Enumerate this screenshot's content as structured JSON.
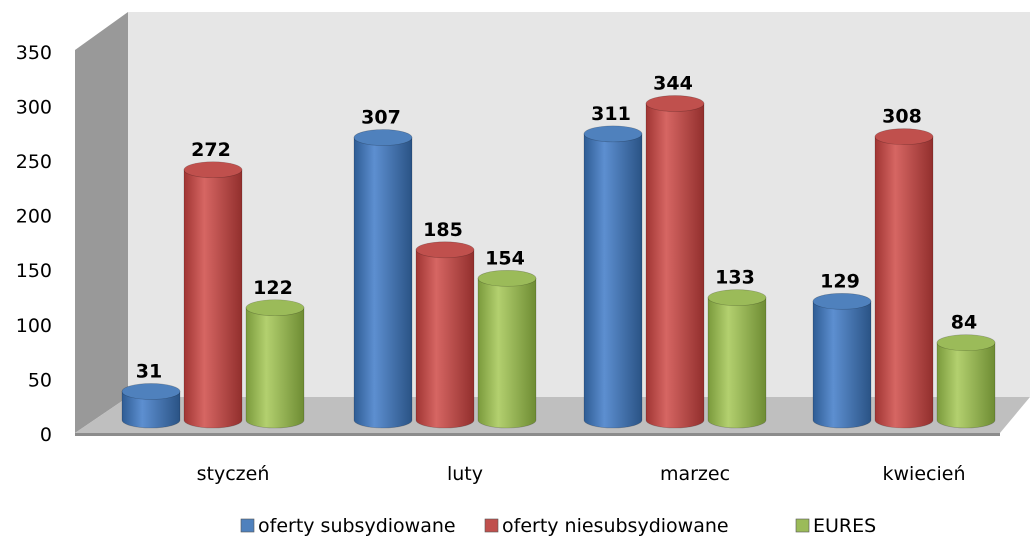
{
  "chart_data": {
    "type": "bar",
    "categories": [
      "styczeń",
      "luty",
      "marzec",
      "kwiecień"
    ],
    "series": [
      {
        "name": "oferty subsydiowane",
        "values": [
          31,
          307,
          311,
          129
        ],
        "color": "#4f81bd"
      },
      {
        "name": "oferty niesubsydiowane",
        "values": [
          272,
          185,
          344,
          308
        ],
        "color": "#c0504d"
      },
      {
        "name": "EURES",
        "values": [
          122,
          154,
          133,
          84
        ],
        "color": "#9bbb59"
      }
    ],
    "yticks": [
      0,
      50,
      100,
      150,
      200,
      250,
      300,
      350
    ],
    "ylim": [
      0,
      350
    ],
    "grid": false,
    "legend_position": "bottom",
    "style": "3d-cylinder"
  }
}
